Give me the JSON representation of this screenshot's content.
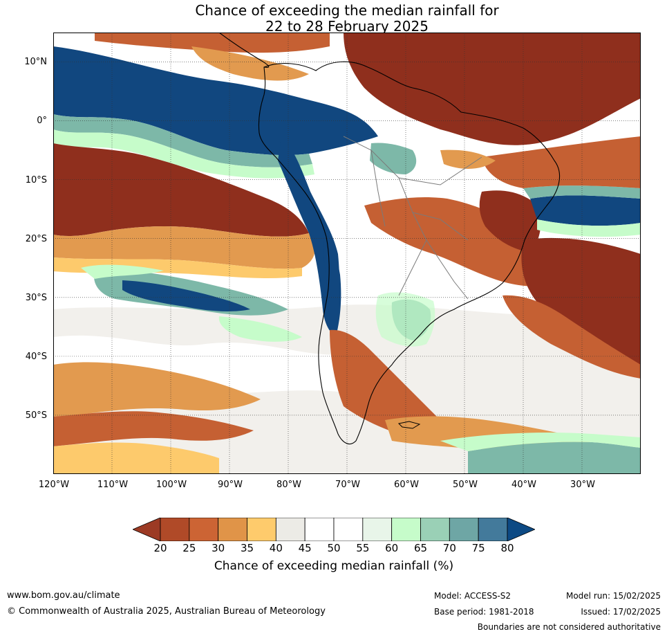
{
  "title": {
    "line1": "Chance of exceeding the median rainfall for",
    "line2": "22 to 28 February 2025"
  },
  "axes": {
    "lat_labels": [
      "10°N",
      "0°",
      "10°S",
      "20°S",
      "30°S",
      "40°S",
      "50°S"
    ],
    "lon_labels": [
      "120°W",
      "110°W",
      "100°W",
      "90°W",
      "80°W",
      "70°W",
      "60°W",
      "50°W",
      "40°W",
      "30°W"
    ],
    "lat_range": [
      -60,
      15
    ],
    "lon_range": [
      -120,
      -20
    ],
    "grid": true
  },
  "colorbar": {
    "ticks": [
      "20",
      "25",
      "30",
      "35",
      "40",
      "45",
      "50",
      "55",
      "60",
      "65",
      "70",
      "75",
      "80"
    ],
    "colors": [
      "#9c3a24",
      "#b04a28",
      "#cc6434",
      "#e09448",
      "#fecb6c",
      "#ecebe6",
      "#ffffff",
      "#ffffff",
      "#e8f5e9",
      "#c6fcca",
      "#9ad0b6",
      "#6ea6a5",
      "#437a9b",
      "#0d4a84"
    ],
    "title": "Chance of exceeding median rainfall (%)"
  },
  "palette": {
    "dry_dark": "#8f2f1d",
    "dry_mid": "#c56033",
    "dry_light": "#e29a4f",
    "dry_pale": "#fdca6c",
    "neutral": "#edebe6",
    "wet_pale": "#c6fcca",
    "wet_mid": "#7db8a8",
    "wet_dark": "#11477f"
  },
  "footer": {
    "url": "www.bom.gov.au/climate",
    "copyright": "© Commonwealth of Australia 2025, Australian Bureau of Meteorology",
    "model": "Model: ACCESS-S2",
    "base_period": "Base period: 1981-2018",
    "model_run": "Model run: 15/02/2025",
    "issued": "Issued: 17/02/2025",
    "disclaimer": "Boundaries are not considered authoritative"
  }
}
